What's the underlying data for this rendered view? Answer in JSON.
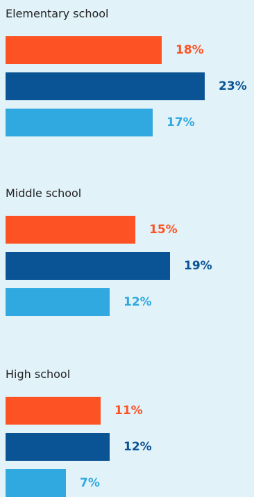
{
  "chart_data": {
    "type": "bar",
    "orientation": "horizontal",
    "categories": [
      "Elementary school",
      "Middle school",
      "High school"
    ],
    "series": [
      {
        "color": "#fd5324",
        "values": [
          18,
          15,
          11
        ]
      },
      {
        "color": "#0a5394",
        "values": [
          23,
          19,
          12
        ]
      },
      {
        "color": "#2fa9df",
        "values": [
          17,
          12,
          7
        ]
      }
    ],
    "value_suffix": "%",
    "xlim": [
      0,
      23
    ],
    "grid": false,
    "legend": "none"
  }
}
